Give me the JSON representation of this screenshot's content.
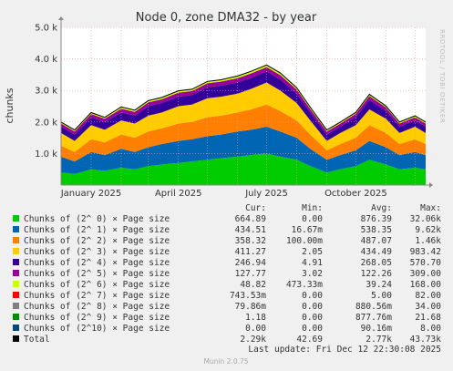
{
  "colors": {
    "page_background": "#f0f0f0",
    "plot_background": "#ffffff",
    "grid": "#e8a0a0",
    "axis": "#888888"
  },
  "chart_data": {
    "type": "area",
    "stacked": true,
    "title": "Node 0, zone DMA32 - by year",
    "ylabel": "chunks",
    "ylim": [
      0,
      5000
    ],
    "yticks": [
      {
        "value": 1000,
        "label": "1.0 k"
      },
      {
        "value": 2000,
        "label": "2.0 k"
      },
      {
        "value": 3000,
        "label": "3.0 k"
      },
      {
        "value": 4000,
        "label": "4.0 k"
      },
      {
        "value": 5000,
        "label": "5.0 k"
      }
    ],
    "xlim": [
      "2024-12-01",
      "2025-12-12"
    ],
    "xticks": [
      {
        "date": "2025-01-01",
        "label": "January 2025"
      },
      {
        "date": "2025-04-01",
        "label": "April 2025"
      },
      {
        "date": "2025-07-01",
        "label": "July 2025"
      },
      {
        "date": "2025-10-01",
        "label": "October 2025"
      }
    ],
    "grid": true,
    "x": [
      "2024-12-01",
      "2024-12-15",
      "2025-01-01",
      "2025-01-15",
      "2025-02-01",
      "2025-02-15",
      "2025-03-01",
      "2025-03-15",
      "2025-04-01",
      "2025-04-15",
      "2025-05-01",
      "2025-05-15",
      "2025-06-01",
      "2025-06-15",
      "2025-07-01",
      "2025-07-15",
      "2025-08-01",
      "2025-08-15",
      "2025-09-01",
      "2025-09-15",
      "2025-10-01",
      "2025-10-15",
      "2025-11-01",
      "2025-11-15",
      "2025-12-01",
      "2025-12-12"
    ],
    "series": [
      {
        "name": "Chunks of (2^ 0) × Page size",
        "color": "#00cc00",
        "values": [
          400,
          350,
          500,
          450,
          550,
          500,
          600,
          650,
          700,
          750,
          800,
          850,
          900,
          950,
          1000,
          900,
          800,
          600,
          400,
          500,
          600,
          800,
          650,
          500,
          550,
          500
        ]
      },
      {
        "name": "Chunks of (2^ 1) × Page size",
        "color": "#0066b3",
        "values": [
          500,
          400,
          550,
          500,
          600,
          550,
          600,
          650,
          700,
          700,
          750,
          750,
          800,
          800,
          850,
          800,
          700,
          550,
          400,
          450,
          500,
          600,
          550,
          450,
          500,
          450
        ]
      },
      {
        "name": "Chunks of (2^ 2) × Page size",
        "color": "#ff8000",
        "values": [
          350,
          300,
          400,
          400,
          450,
          450,
          500,
          500,
          550,
          550,
          600,
          600,
          600,
          650,
          700,
          650,
          550,
          450,
          300,
          350,
          400,
          500,
          450,
          350,
          400,
          350
        ]
      },
      {
        "name": "Chunks of (2^ 3) × Page size",
        "color": "#ffcc00",
        "values": [
          400,
          350,
          450,
          400,
          450,
          450,
          500,
          500,
          550,
          550,
          600,
          600,
          600,
          650,
          700,
          650,
          550,
          450,
          300,
          350,
          400,
          500,
          450,
          350,
          400,
          350
        ]
      },
      {
        "name": "Chunks of (2^ 4) × Page size",
        "color": "#330099",
        "values": [
          200,
          200,
          250,
          250,
          250,
          250,
          300,
          300,
          300,
          300,
          350,
          350,
          350,
          350,
          350,
          350,
          300,
          250,
          200,
          200,
          250,
          300,
          250,
          200,
          200,
          200
        ]
      },
      {
        "name": "Chunks of (2^ 5) × Page size",
        "color": "#990099",
        "values": [
          100,
          100,
          100,
          100,
          120,
          120,
          120,
          120,
          130,
          130,
          130,
          130,
          140,
          140,
          140,
          140,
          130,
          110,
          100,
          100,
          110,
          120,
          110,
          100,
          100,
          100
        ]
      },
      {
        "name": "Chunks of (2^ 6) × Page size",
        "color": "#ccff00",
        "values": [
          40,
          40,
          40,
          40,
          50,
          50,
          50,
          50,
          50,
          50,
          50,
          50,
          60,
          60,
          60,
          60,
          50,
          50,
          40,
          40,
          40,
          50,
          40,
          40,
          40,
          40
        ]
      },
      {
        "name": "Chunks of (2^ 7) × Page size",
        "color": "#ff0000",
        "values": [
          5,
          5,
          5,
          5,
          5,
          5,
          5,
          5,
          5,
          5,
          5,
          5,
          5,
          5,
          5,
          5,
          5,
          5,
          5,
          5,
          5,
          5,
          5,
          5,
          5,
          5
        ]
      },
      {
        "name": "Chunks of (2^ 8) × Page size",
        "color": "#808080",
        "values": [
          1,
          1,
          1,
          1,
          1,
          1,
          1,
          1,
          1,
          1,
          1,
          1,
          1,
          1,
          1,
          1,
          1,
          1,
          1,
          1,
          1,
          1,
          1,
          1,
          1,
          1
        ]
      },
      {
        "name": "Chunks of (2^ 9) × Page size",
        "color": "#008f00",
        "values": [
          1,
          1,
          1,
          1,
          1,
          1,
          1,
          1,
          1,
          1,
          1,
          1,
          1,
          1,
          1,
          1,
          1,
          1,
          1,
          1,
          1,
          1,
          1,
          1,
          1,
          1
        ]
      },
      {
        "name": "Chunks of (2^10) × Page size",
        "color": "#00487d",
        "values": [
          0,
          0,
          0,
          0,
          0,
          0,
          0,
          0,
          0,
          0,
          0,
          0,
          0,
          0,
          0,
          0,
          0,
          0,
          0,
          0,
          0,
          0,
          0,
          0,
          0,
          0
        ]
      }
    ],
    "total": {
      "name": "Total",
      "color": "#000000"
    },
    "legend_header": [
      "Cur:",
      "Min:",
      "Avg:",
      "Max:"
    ],
    "legend_rows": [
      {
        "name": "Chunks of (2^ 0) × Page size",
        "color": "#00cc00",
        "cur": "664.89",
        "min": "0.00",
        "avg": "876.39",
        "max": "32.06k"
      },
      {
        "name": "Chunks of (2^ 1) × Page size",
        "color": "#0066b3",
        "cur": "434.51",
        "min": "16.67m",
        "avg": "538.35",
        "max": "9.62k"
      },
      {
        "name": "Chunks of (2^ 2) × Page size",
        "color": "#ff8000",
        "cur": "358.32",
        "min": "100.00m",
        "avg": "487.07",
        "max": "1.46k"
      },
      {
        "name": "Chunks of (2^ 3) × Page size",
        "color": "#ffcc00",
        "cur": "411.27",
        "min": "2.05",
        "avg": "434.49",
        "max": "983.42"
      },
      {
        "name": "Chunks of (2^ 4) × Page size",
        "color": "#330099",
        "cur": "246.94",
        "min": "4.91",
        "avg": "268.05",
        "max": "570.70"
      },
      {
        "name": "Chunks of (2^ 5) × Page size",
        "color": "#990099",
        "cur": "127.77",
        "min": "3.02",
        "avg": "122.26",
        "max": "309.00"
      },
      {
        "name": "Chunks of (2^ 6) × Page size",
        "color": "#ccff00",
        "cur": "48.82",
        "min": "473.33m",
        "avg": "39.24",
        "max": "168.00"
      },
      {
        "name": "Chunks of (2^ 7) × Page size",
        "color": "#ff0000",
        "cur": "743.53m",
        "min": "0.00",
        "avg": "5.00",
        "max": "82.00"
      },
      {
        "name": "Chunks of (2^ 8) × Page size",
        "color": "#808080",
        "cur": "79.86m",
        "min": "0.00",
        "avg": "880.56m",
        "max": "34.00"
      },
      {
        "name": "Chunks of (2^ 9) × Page size",
        "color": "#008f00",
        "cur": "1.18",
        "min": "0.00",
        "avg": "877.76m",
        "max": "21.68"
      },
      {
        "name": "Chunks of (2^10) × Page size",
        "color": "#00487d",
        "cur": "0.00",
        "min": "0.00",
        "avg": "90.16m",
        "max": "8.00"
      },
      {
        "name": "Total",
        "color": "#000000",
        "cur": "2.29k",
        "min": "42.69",
        "avg": "2.77k",
        "max": "43.73k"
      }
    ],
    "last_update": "Last update: Fri Dec 12 22:30:08 2025"
  },
  "side_label": "RRDTOOL / TOBI OETIKER",
  "footer": "Munin 2.0.75"
}
